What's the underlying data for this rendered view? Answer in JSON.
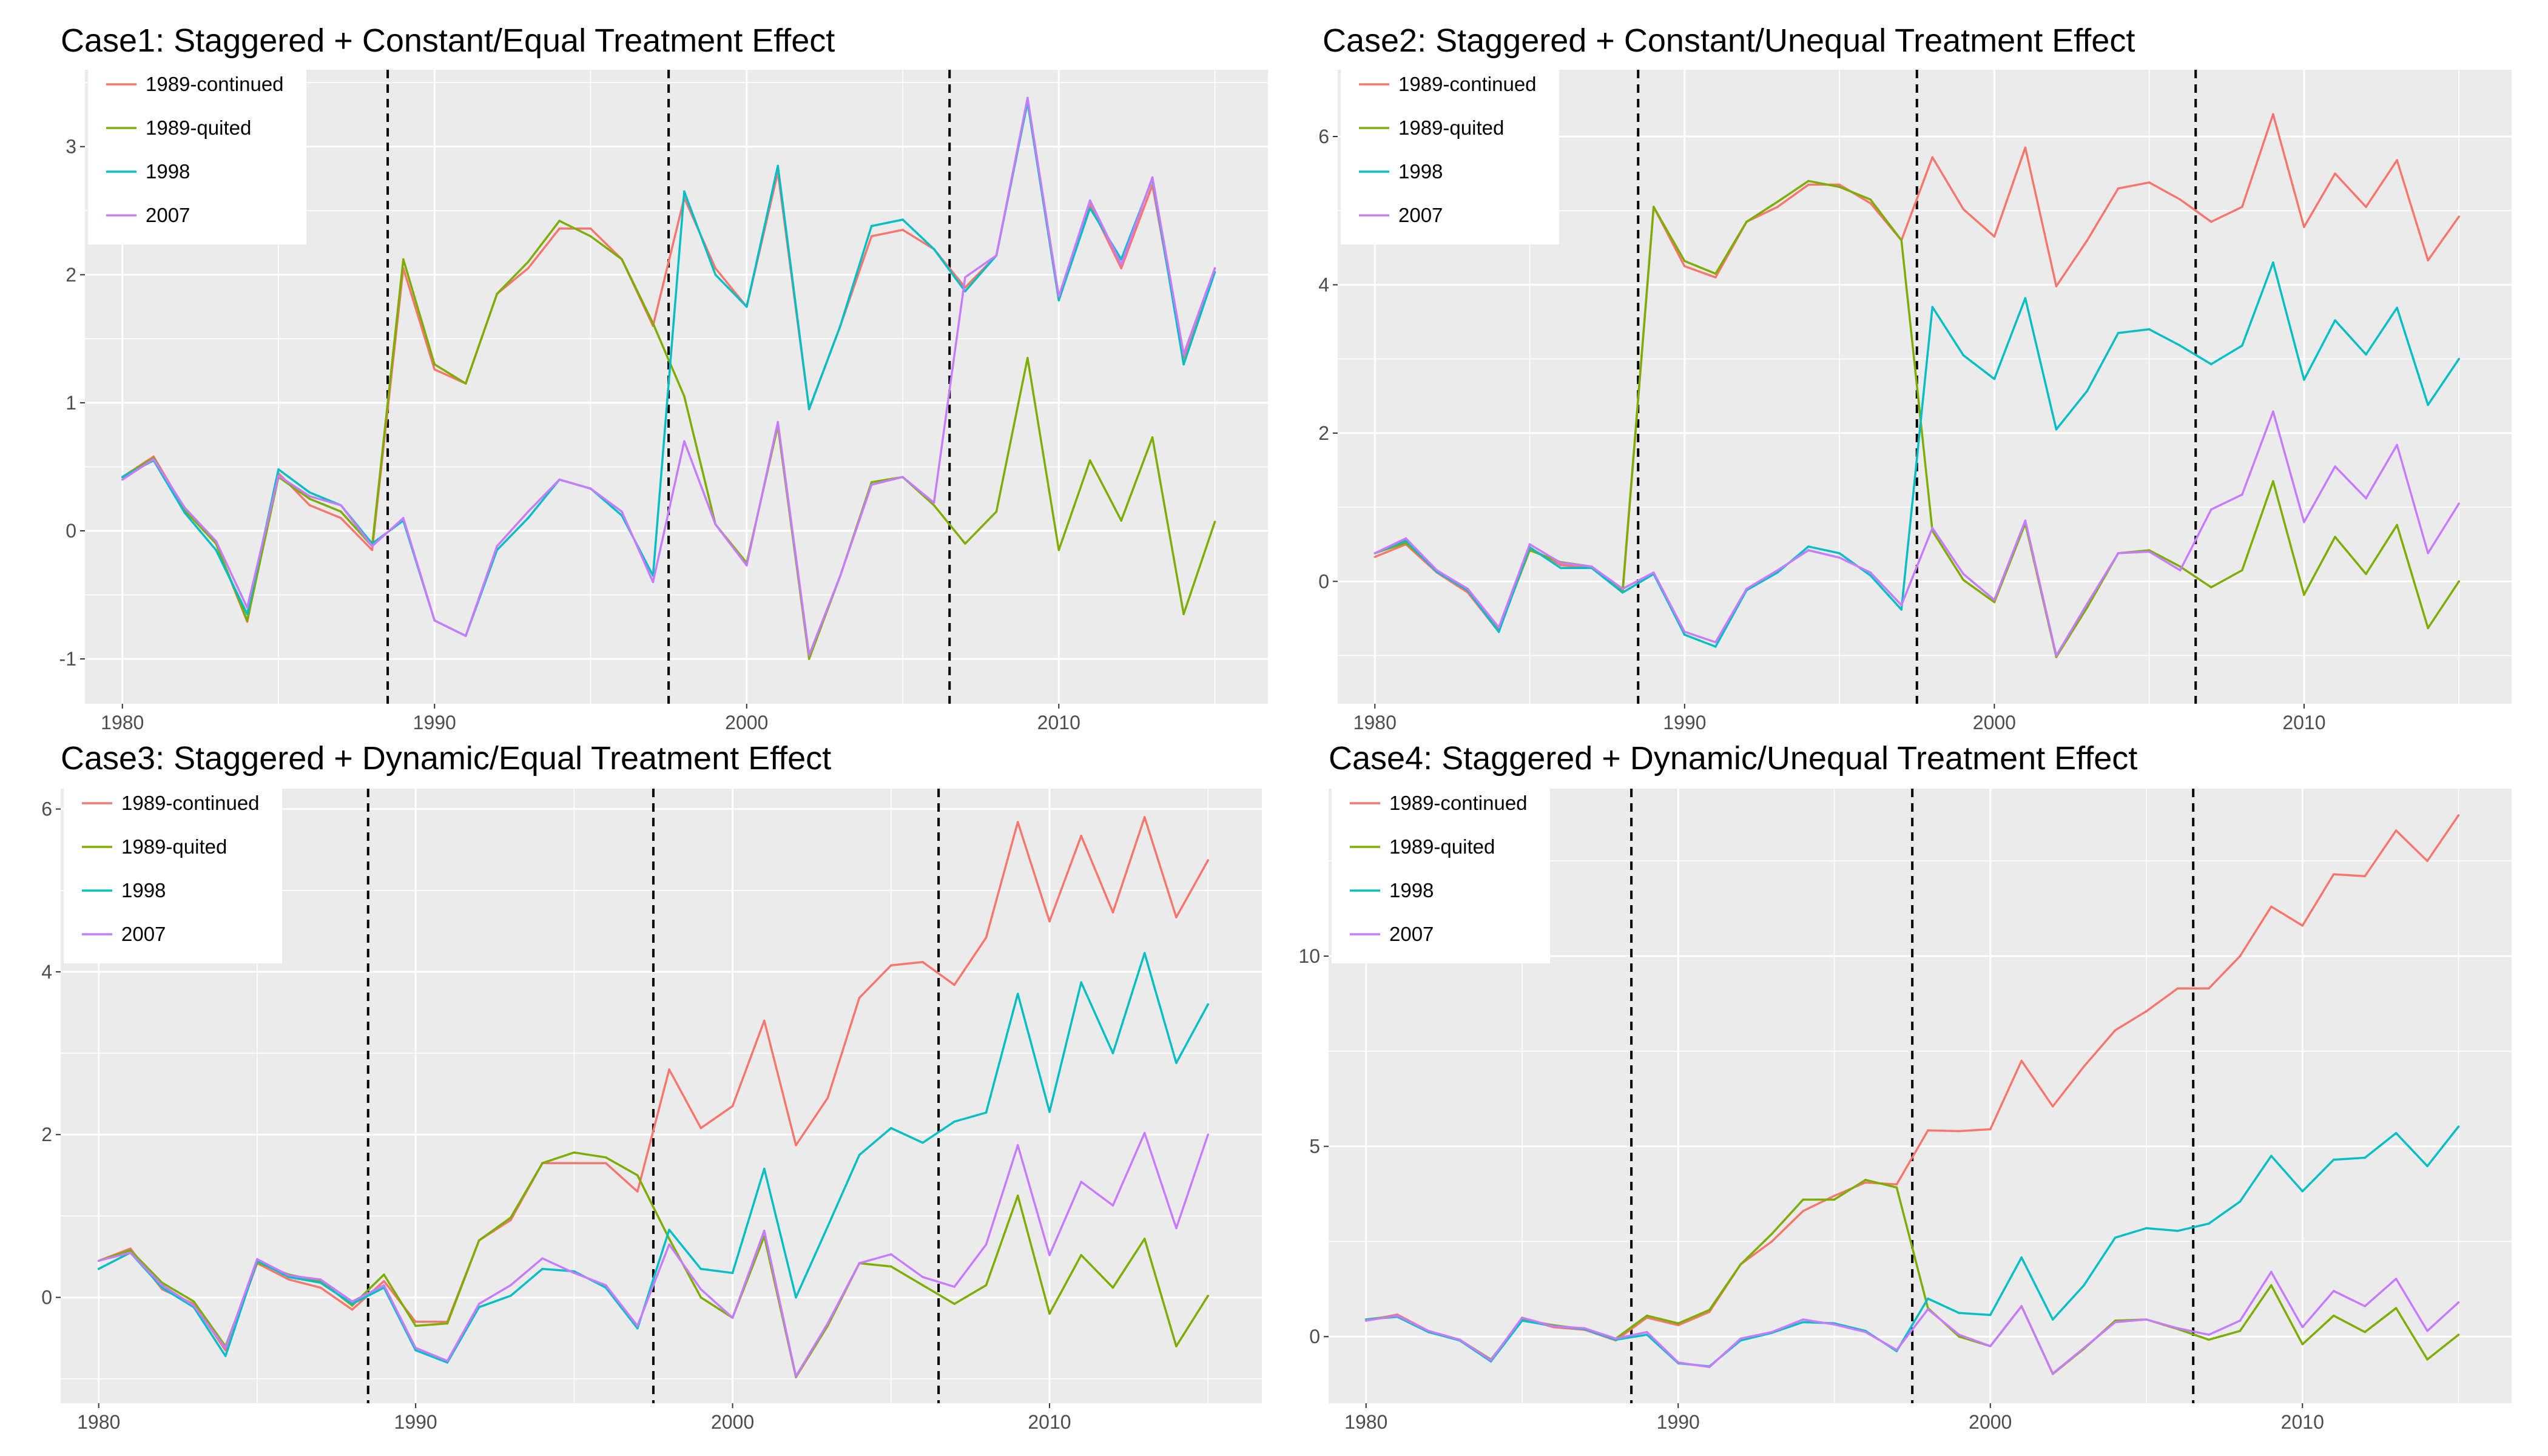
{
  "chart_data": [
    {
      "type": "line",
      "title": "Case1: Staggered + Constant/Equal Treatment Effect",
      "xlabel": "",
      "ylabel": "",
      "xlim": [
        1978.8,
        2016.7
      ],
      "ylim": [
        -1.35,
        3.6
      ],
      "x_ticks": [
        1980,
        1990,
        2000,
        2010
      ],
      "y_ticks": [
        -1,
        0,
        1,
        2,
        3
      ],
      "vlines": [
        1988.5,
        1997.5,
        2006.5
      ],
      "legend_position": "top-left",
      "x": [
        1980,
        1981,
        1982,
        1983,
        1984,
        1985,
        1986,
        1987,
        1988,
        1989,
        1990,
        1991,
        1992,
        1993,
        1994,
        1995,
        1996,
        1997,
        1998,
        1999,
        2000,
        2001,
        2002,
        2003,
        2004,
        2005,
        2006,
        2007,
        2008,
        2009,
        2010,
        2011,
        2012,
        2013,
        2014,
        2015
      ],
      "series": [
        {
          "name": "1989-continued",
          "color": "#F8766D",
          "values": [
            0.42,
            0.58,
            0.17,
            -0.1,
            -0.71,
            0.45,
            0.2,
            0.1,
            -0.15,
            2.05,
            1.26,
            1.15,
            1.85,
            2.05,
            2.36,
            2.36,
            2.12,
            1.6,
            2.6,
            2.05,
            1.75,
            2.8,
            0.95,
            1.6,
            2.3,
            2.35,
            2.2,
            1.9,
            2.15,
            3.35,
            1.8,
            2.55,
            2.05,
            2.7,
            1.35,
            2.05
          ]
        },
        {
          "name": "1989-quited",
          "color": "#7CAE00",
          "values": [
            0.42,
            0.57,
            0.16,
            -0.1,
            -0.7,
            0.42,
            0.25,
            0.15,
            -0.12,
            2.12,
            1.3,
            1.15,
            1.85,
            2.1,
            2.42,
            2.3,
            2.12,
            1.62,
            1.05,
            0.05,
            -0.25,
            0.82,
            -1.0,
            -0.35,
            0.38,
            0.42,
            0.2,
            -0.1,
            0.15,
            1.35,
            -0.15,
            0.55,
            0.08,
            0.73,
            -0.65,
            0.07
          ]
        },
        {
          "name": "1998",
          "color": "#00BFC4",
          "values": [
            0.42,
            0.55,
            0.14,
            -0.15,
            -0.65,
            0.48,
            0.3,
            0.2,
            -0.1,
            0.08,
            -0.7,
            -0.82,
            -0.15,
            0.1,
            0.4,
            0.33,
            0.12,
            -0.35,
            2.65,
            2.0,
            1.75,
            2.85,
            0.95,
            1.6,
            2.38,
            2.43,
            2.2,
            1.87,
            2.15,
            3.35,
            1.8,
            2.52,
            2.12,
            2.75,
            1.3,
            2.02
          ]
        },
        {
          "name": "2007",
          "color": "#C77CFF",
          "values": [
            0.4,
            0.56,
            0.18,
            -0.08,
            -0.6,
            0.43,
            0.27,
            0.2,
            -0.12,
            0.1,
            -0.7,
            -0.82,
            -0.12,
            0.15,
            0.4,
            0.33,
            0.15,
            -0.4,
            0.7,
            0.05,
            -0.27,
            0.85,
            -0.97,
            -0.35,
            0.36,
            0.42,
            0.22,
            1.98,
            2.15,
            3.38,
            1.83,
            2.58,
            2.08,
            2.76,
            1.38,
            2.05
          ]
        }
      ]
    },
    {
      "type": "line",
      "title": "Case2: Staggered + Constant/Unequal Treatment Effect",
      "xlabel": "",
      "ylabel": "",
      "xlim": [
        1978.8,
        2016.7
      ],
      "ylim": [
        -1.65,
        6.9
      ],
      "x_ticks": [
        1980,
        1990,
        2000,
        2010
      ],
      "y_ticks": [
        0,
        2,
        4,
        6
      ],
      "vlines": [
        1988.5,
        1997.5,
        2006.5
      ],
      "legend_position": "top-left",
      "x": [
        1980,
        1981,
        1982,
        1983,
        1984,
        1985,
        1986,
        1987,
        1988,
        1989,
        1990,
        1991,
        1992,
        1993,
        1994,
        1995,
        1996,
        1997,
        1998,
        1999,
        2000,
        2001,
        2002,
        2003,
        2004,
        2005,
        2006,
        2007,
        2008,
        2009,
        2010,
        2011,
        2012,
        2013,
        2014,
        2015
      ],
      "series": [
        {
          "name": "1989-continued",
          "color": "#F8766D",
          "values": [
            0.33,
            0.5,
            0.12,
            -0.15,
            -0.68,
            0.45,
            0.22,
            0.18,
            -0.15,
            5.05,
            4.25,
            4.1,
            4.85,
            5.05,
            5.35,
            5.35,
            5.1,
            4.6,
            5.72,
            5.02,
            4.65,
            5.85,
            3.98,
            4.6,
            5.3,
            5.38,
            5.15,
            4.85,
            5.05,
            6.3,
            4.78,
            5.5,
            5.05,
            5.68,
            4.33,
            4.92
          ]
        },
        {
          "name": "1989-quited",
          "color": "#7CAE00",
          "values": [
            0.38,
            0.52,
            0.15,
            -0.12,
            -0.65,
            0.42,
            0.26,
            0.2,
            -0.12,
            5.05,
            4.32,
            4.15,
            4.85,
            5.12,
            5.4,
            5.32,
            5.15,
            4.6,
            0.68,
            0.02,
            -0.28,
            0.78,
            -1.02,
            -0.35,
            0.38,
            0.42,
            0.2,
            -0.08,
            0.15,
            1.35,
            -0.18,
            0.6,
            0.1,
            0.76,
            -0.63,
            0.0
          ]
        },
        {
          "name": "1998",
          "color": "#00BFC4",
          "values": [
            0.38,
            0.55,
            0.13,
            -0.12,
            -0.68,
            0.46,
            0.18,
            0.18,
            -0.15,
            0.1,
            -0.72,
            -0.88,
            -0.12,
            0.12,
            0.47,
            0.38,
            0.08,
            -0.38,
            3.7,
            3.05,
            2.73,
            3.82,
            2.05,
            2.57,
            3.35,
            3.4,
            3.18,
            2.93,
            3.18,
            4.3,
            2.72,
            3.52,
            3.06,
            3.69,
            2.38,
            3.0
          ]
        },
        {
          "name": "2007",
          "color": "#C77CFF",
          "values": [
            0.38,
            0.58,
            0.15,
            -0.1,
            -0.62,
            0.5,
            0.25,
            0.2,
            -0.1,
            0.12,
            -0.68,
            -0.82,
            -0.1,
            0.15,
            0.42,
            0.32,
            0.12,
            -0.32,
            0.72,
            0.1,
            -0.25,
            0.82,
            -1.0,
            -0.3,
            0.38,
            0.4,
            0.15,
            0.97,
            1.17,
            2.29,
            0.8,
            1.55,
            1.12,
            1.84,
            0.38,
            1.05
          ]
        }
      ]
    },
    {
      "type": "line",
      "title": "Case3: Staggered + Dynamic/Equal Treatment Effect",
      "xlabel": "",
      "ylabel": "",
      "xlim": [
        1978.8,
        2016.7
      ],
      "ylim": [
        -1.3,
        6.25
      ],
      "x_ticks": [
        1980,
        1990,
        2000,
        2010
      ],
      "y_ticks": [
        0,
        2,
        4,
        6
      ],
      "vlines": [
        1988.5,
        1997.5,
        2006.5
      ],
      "legend_position": "top-left",
      "x": [
        1980,
        1981,
        1982,
        1983,
        1984,
        1985,
        1986,
        1987,
        1988,
        1989,
        1990,
        1991,
        1992,
        1993,
        1994,
        1995,
        1996,
        1997,
        1998,
        1999,
        2000,
        2001,
        2002,
        2003,
        2004,
        2005,
        2006,
        2007,
        2008,
        2009,
        2010,
        2011,
        2012,
        2013,
        2014,
        2015
      ],
      "series": [
        {
          "name": "1989-continued",
          "color": "#F8766D",
          "values": [
            0.45,
            0.6,
            0.1,
            -0.08,
            -0.65,
            0.42,
            0.22,
            0.12,
            -0.15,
            0.2,
            -0.3,
            -0.3,
            0.7,
            0.95,
            1.65,
            1.65,
            1.65,
            1.3,
            2.8,
            2.08,
            2.35,
            3.4,
            1.87,
            2.45,
            3.68,
            4.08,
            4.12,
            3.84,
            4.42,
            5.84,
            4.62,
            5.67,
            4.73,
            5.9,
            4.67,
            5.37
          ]
        },
        {
          "name": "1989-quited",
          "color": "#7CAE00",
          "values": [
            0.45,
            0.58,
            0.18,
            -0.05,
            -0.6,
            0.43,
            0.28,
            0.2,
            -0.1,
            0.28,
            -0.35,
            -0.32,
            0.7,
            0.98,
            1.65,
            1.78,
            1.72,
            1.5,
            0.72,
            0.0,
            -0.25,
            0.75,
            -0.98,
            -0.35,
            0.42,
            0.38,
            0.15,
            -0.08,
            0.15,
            1.25,
            -0.2,
            0.52,
            0.12,
            0.72,
            -0.6,
            0.02
          ]
        },
        {
          "name": "1998",
          "color": "#00BFC4",
          "values": [
            0.35,
            0.55,
            0.12,
            -0.12,
            -0.72,
            0.45,
            0.25,
            0.18,
            -0.08,
            0.12,
            -0.65,
            -0.8,
            -0.12,
            0.02,
            0.35,
            0.32,
            0.12,
            -0.38,
            0.83,
            0.35,
            0.3,
            1.58,
            0.0,
            0.87,
            1.75,
            2.08,
            1.9,
            2.16,
            2.27,
            3.73,
            2.28,
            3.87,
            3.0,
            4.23,
            2.88,
            3.6
          ]
        },
        {
          "name": "2007",
          "color": "#C77CFF",
          "values": [
            0.45,
            0.55,
            0.15,
            -0.1,
            -0.62,
            0.47,
            0.27,
            0.22,
            -0.05,
            0.15,
            -0.62,
            -0.78,
            -0.08,
            0.15,
            0.48,
            0.3,
            0.15,
            -0.35,
            0.65,
            0.1,
            -0.25,
            0.82,
            -0.97,
            -0.32,
            0.42,
            0.53,
            0.25,
            0.13,
            0.65,
            1.87,
            0.52,
            1.42,
            1.13,
            2.02,
            0.85,
            2.0
          ]
        }
      ]
    },
    {
      "type": "line",
      "title": "Case4: Staggered + Dynamic/Unequal Treatment Effect",
      "xlabel": "",
      "ylabel": "",
      "xlim": [
        1978.8,
        2016.7
      ],
      "ylim": [
        -1.75,
        14.4
      ],
      "x_ticks": [
        1980,
        1990,
        2000,
        2010
      ],
      "y_ticks": [
        0,
        5,
        10
      ],
      "vlines": [
        1988.5,
        1997.5,
        2006.5
      ],
      "legend_position": "top-left",
      "x": [
        1980,
        1981,
        1982,
        1983,
        1984,
        1985,
        1986,
        1987,
        1988,
        1989,
        1990,
        1991,
        1992,
        1993,
        1994,
        1995,
        1996,
        1997,
        1998,
        1999,
        2000,
        2001,
        2002,
        2003,
        2004,
        2005,
        2006,
        2007,
        2008,
        2009,
        2010,
        2011,
        2012,
        2013,
        2014,
        2015
      ],
      "series": [
        {
          "name": "1989-continued",
          "color": "#F8766D",
          "values": [
            0.42,
            0.58,
            0.15,
            -0.08,
            -0.65,
            0.48,
            0.25,
            0.18,
            -0.1,
            0.5,
            0.3,
            0.65,
            1.9,
            2.5,
            3.3,
            3.7,
            4.05,
            4.0,
            5.42,
            5.4,
            5.45,
            7.25,
            6.05,
            7.1,
            8.05,
            8.55,
            9.15,
            9.15,
            10.0,
            11.3,
            10.8,
            12.15,
            12.1,
            13.3,
            12.5,
            13.7
          ]
        },
        {
          "name": "1989-quited",
          "color": "#7CAE00",
          "values": [
            0.45,
            0.55,
            0.12,
            -0.08,
            -0.6,
            0.45,
            0.3,
            0.2,
            -0.05,
            0.55,
            0.35,
            0.7,
            1.9,
            2.7,
            3.6,
            3.6,
            4.12,
            3.92,
            0.75,
            0.0,
            -0.25,
            0.8,
            -0.98,
            -0.32,
            0.42,
            0.45,
            0.2,
            -0.08,
            0.15,
            1.35,
            -0.2,
            0.55,
            0.12,
            0.75,
            -0.6,
            0.05
          ]
        },
        {
          "name": "1998",
          "color": "#00BFC4",
          "values": [
            0.45,
            0.52,
            0.12,
            -0.1,
            -0.65,
            0.42,
            0.28,
            0.2,
            -0.08,
            0.05,
            -0.7,
            -0.78,
            -0.1,
            0.1,
            0.38,
            0.35,
            0.15,
            -0.38,
            1.0,
            0.62,
            0.57,
            2.08,
            0.45,
            1.35,
            2.6,
            2.85,
            2.78,
            2.97,
            3.55,
            4.75,
            3.82,
            4.65,
            4.7,
            5.35,
            4.48,
            5.52
          ]
        },
        {
          "name": "2007",
          "color": "#C77CFF",
          "values": [
            0.42,
            0.55,
            0.15,
            -0.08,
            -0.62,
            0.5,
            0.27,
            0.22,
            -0.05,
            0.12,
            -0.68,
            -0.8,
            -0.05,
            0.12,
            0.45,
            0.32,
            0.12,
            -0.35,
            0.72,
            0.05,
            -0.25,
            0.8,
            -0.97,
            -0.3,
            0.38,
            0.45,
            0.22,
            0.05,
            0.42,
            1.7,
            0.25,
            1.2,
            0.8,
            1.52,
            0.15,
            0.9
          ]
        }
      ]
    }
  ]
}
